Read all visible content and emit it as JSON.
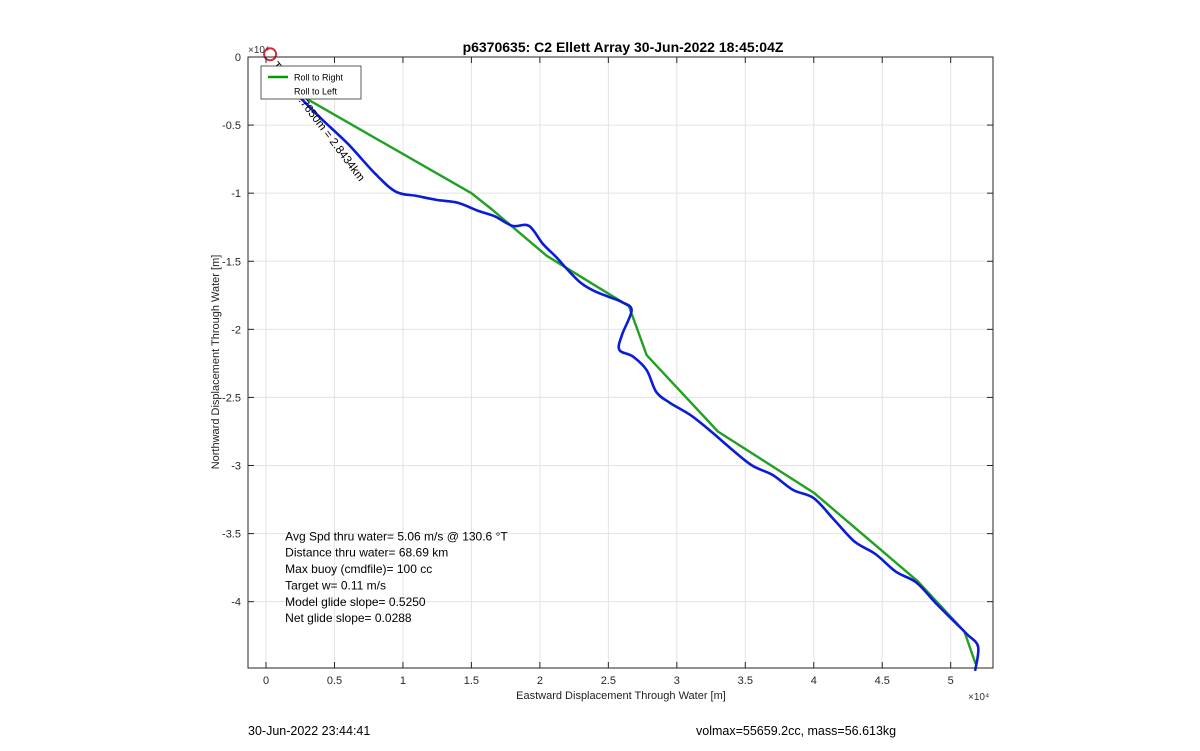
{
  "chart_data": {
    "type": "line",
    "title": "p6370635: C2 Ellett Array 30-Jun-2022 18:45:04Z",
    "xlabel": "Eastward Displacement Through Water [m]",
    "ylabel": "Northward Displacement Through Water [m]",
    "xlim": [
      -12000,
      53000
    ],
    "ylim": [
      -44800,
      500
    ],
    "x_exponent_label": "×10⁴",
    "y_exponent_label": "×10⁴",
    "x_ticks": [
      0,
      5000,
      10000,
      15000,
      20000,
      25000,
      30000,
      35000,
      40000,
      45000,
      50000
    ],
    "x_tick_labels": [
      "0",
      "0.5",
      "1",
      "1.5",
      "2",
      "2.5",
      "3",
      "3.5",
      "4",
      "4.5",
      "5"
    ],
    "y_ticks": [
      0,
      -5000,
      -10000,
      -15000,
      -20000,
      -25000,
      -30000,
      -35000,
      -40000
    ],
    "y_tick_labels": [
      "0",
      "-0.5",
      "-1",
      "-1.5",
      "-2",
      "-2.5",
      "-3",
      "-3.5",
      "-4"
    ],
    "grid": true,
    "legend_placement": "top-left",
    "legend": [
      {
        "label": "Roll to Right",
        "color": "#00a000"
      },
      {
        "label": "Roll to Left",
        "color": "#ffffff"
      }
    ],
    "series": [
      {
        "name": "Roll to Right",
        "color": "#22a022",
        "x": [
          0,
          2500,
          15000,
          16500,
          20500,
          26500,
          27800,
          33000,
          40000,
          47600,
          51000,
          51800
        ],
        "y": [
          -800,
          -2800,
          -10000,
          -11200,
          -14600,
          -18300,
          -21900,
          -27500,
          -32000,
          -38500,
          -42200,
          -44500
        ]
      },
      {
        "name": "Roll to Left",
        "color": "#0a1cd8",
        "x": [
          0,
          1000,
          2500,
          4000,
          6000,
          8000,
          9500,
          11000,
          12500,
          14000,
          15500,
          16700,
          18000,
          19200,
          20200,
          21200,
          22000,
          23000,
          24000,
          25000,
          26000,
          26700,
          26000,
          25800,
          26800,
          27800,
          28500,
          29500,
          31000,
          32500,
          34000,
          35500,
          37000,
          38500,
          40000,
          41500,
          43000,
          44500,
          46000,
          47500,
          49000,
          50300,
          51200,
          52000,
          51800
        ],
        "y": [
          -800,
          -1800,
          -3000,
          -4500,
          -6400,
          -8600,
          -9900,
          -10200,
          -10500,
          -10700,
          -11300,
          -11700,
          -12400,
          -12400,
          -13700,
          -14700,
          -15600,
          -16600,
          -17200,
          -17600,
          -18000,
          -18600,
          -20400,
          -21500,
          -22000,
          -23000,
          -24600,
          -25400,
          -26300,
          -27500,
          -28800,
          -30000,
          -30700,
          -31800,
          -32400,
          -34000,
          -35600,
          -36500,
          -37800,
          -38600,
          -40200,
          -41500,
          -42400,
          -43300,
          -45000
        ]
      }
    ],
    "markers": [
      {
        "type": "circle",
        "x": 300,
        "y": 200,
        "color": "#e0283e"
      }
    ],
    "annotations": [
      {
        "text": "Transit 3.7650m = 2.8434km",
        "x": 400,
        "y": -600
      },
      {
        "text": "Avg Spd thru water=  5.06 m/s @ 130.6 °T",
        "x": 1400,
        "y": -35500
      },
      {
        "text": "Distance thru water= 68.69 km",
        "x": 1400,
        "y": -36700
      },
      {
        "text": "Max buoy (cmdfile)= 100 cc",
        "x": 1400,
        "y": -37900
      },
      {
        "text": "Target w= 0.11 m/s",
        "x": 1400,
        "y": -39100
      },
      {
        "text": "Model glide slope= 0.5250",
        "x": 1400,
        "y": -40300
      },
      {
        "text": "Net glide slope= 0.0288",
        "x": 1400,
        "y": -41500
      }
    ]
  },
  "footer": {
    "left": "30-Jun-2022 23:44:41",
    "right": "volmax=55659.2cc, mass=56.613kg"
  }
}
